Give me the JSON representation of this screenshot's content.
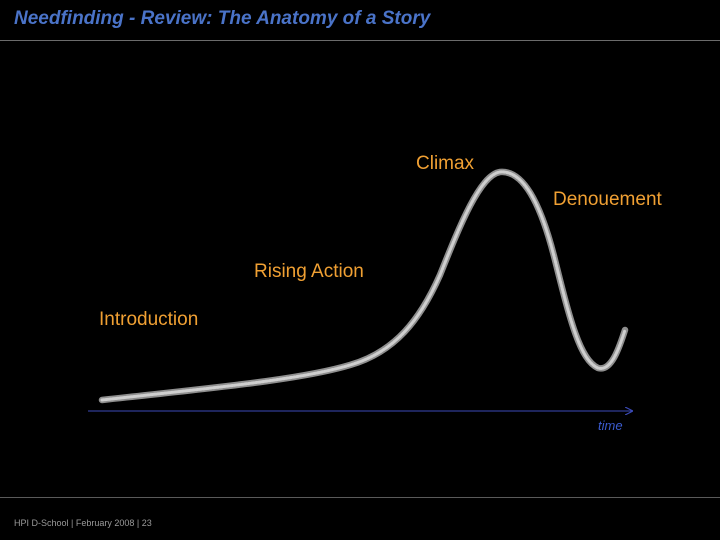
{
  "header": {
    "title": "Needfinding - Review: The Anatomy of a Story"
  },
  "diagram": {
    "labels": {
      "introduction": "Introduction",
      "rising_action": "Rising Action",
      "climax": "Climax",
      "denouement": "Denouement"
    },
    "axis_label": "time",
    "colors": {
      "label": "#f0a033",
      "curve": "#b8b8b8",
      "axis": "#3b4ab8",
      "axis_label": "#3b5bd0",
      "title": "#4a73c8"
    }
  },
  "footer": {
    "text": "HPI D-School  |  February 2008  | 23"
  }
}
